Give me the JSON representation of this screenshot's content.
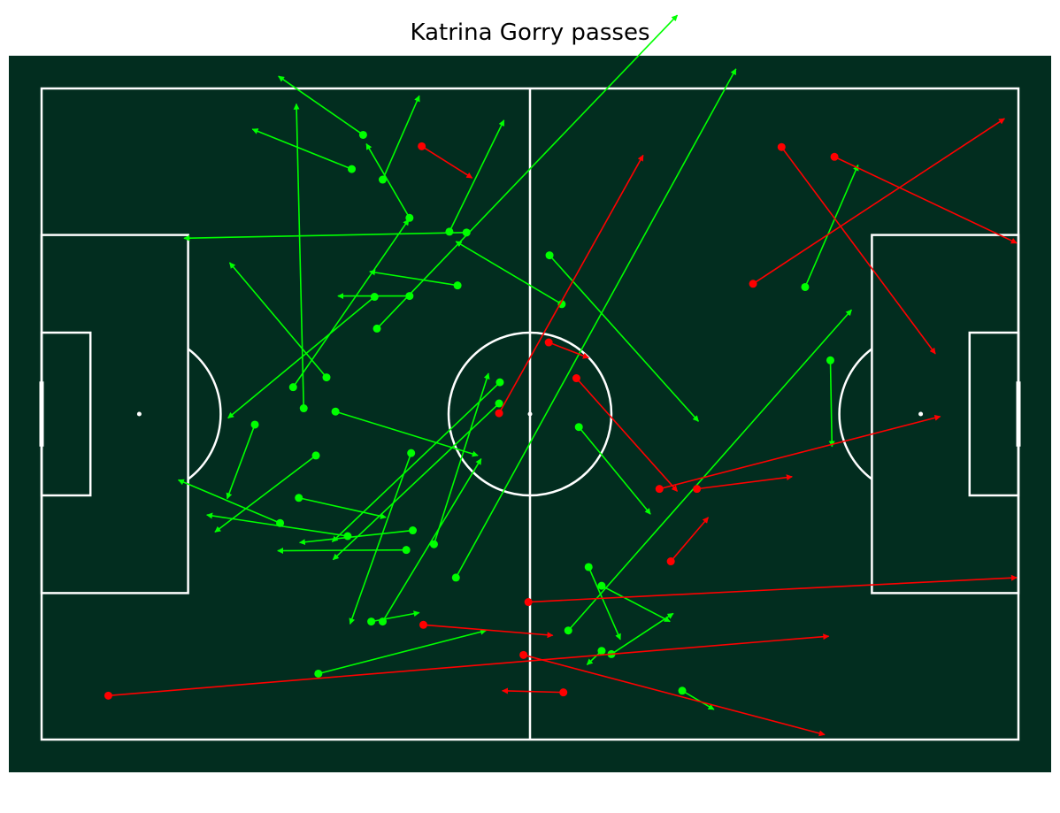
{
  "chart_data": {
    "type": "scatter",
    "title": "Katrina Gorry passes",
    "xlim": [
      0,
      120
    ],
    "ylim": [
      0,
      80
    ],
    "colors": {
      "pitch": "#022d1f",
      "lines": "#ffffff",
      "complete": "#00ff00",
      "incomplete": "#ff0000"
    },
    "series": [
      {
        "name": "complete",
        "passes": [
          {
            "x": 39.5,
            "y": 74.3,
            "end_x": 29.1,
            "end_y": 81.5
          },
          {
            "x": 41.9,
            "y": 68.8,
            "end_x": 46.4,
            "end_y": 79.1
          },
          {
            "x": 38.1,
            "y": 70.1,
            "end_x": 25.9,
            "end_y": 75.0
          },
          {
            "x": 45.2,
            "y": 64.1,
            "end_x": 39.9,
            "end_y": 73.2
          },
          {
            "x": 52.2,
            "y": 62.3,
            "end_x": 17.5,
            "end_y": 61.6
          },
          {
            "x": 50.1,
            "y": 62.4,
            "end_x": 56.8,
            "end_y": 76.1
          },
          {
            "x": 41.2,
            "y": 50.5,
            "end_x": 78.1,
            "end_y": 89.0
          },
          {
            "x": 30.9,
            "y": 43.3,
            "end_x": 45.1,
            "end_y": 63.9
          },
          {
            "x": 32.2,
            "y": 40.7,
            "end_x": 31.3,
            "end_y": 78.1
          },
          {
            "x": 35.0,
            "y": 44.5,
            "end_x": 23.1,
            "end_y": 58.6
          },
          {
            "x": 40.9,
            "y": 54.4,
            "end_x": 22.9,
            "end_y": 39.5
          },
          {
            "x": 45.2,
            "y": 54.5,
            "end_x": 36.4,
            "end_y": 54.5
          },
          {
            "x": 51.1,
            "y": 55.8,
            "end_x": 40.3,
            "end_y": 57.5
          },
          {
            "x": 62.4,
            "y": 59.5,
            "end_x": 80.7,
            "end_y": 39.1
          },
          {
            "x": 63.9,
            "y": 53.5,
            "end_x": 50.9,
            "end_y": 61.2
          },
          {
            "x": 36.1,
            "y": 40.3,
            "end_x": 53.6,
            "end_y": 34.9
          },
          {
            "x": 56.2,
            "y": 41.3,
            "end_x": 35.8,
            "end_y": 22.1
          },
          {
            "x": 26.2,
            "y": 38.7,
            "end_x": 22.8,
            "end_y": 29.6
          },
          {
            "x": 33.7,
            "y": 34.9,
            "end_x": 21.3,
            "end_y": 25.5
          },
          {
            "x": 31.6,
            "y": 29.7,
            "end_x": 42.3,
            "end_y": 27.3
          },
          {
            "x": 29.3,
            "y": 26.6,
            "end_x": 16.8,
            "end_y": 31.9
          },
          {
            "x": 37.6,
            "y": 25.0,
            "end_x": 20.3,
            "end_y": 27.6
          },
          {
            "x": 45.6,
            "y": 25.7,
            "end_x": 31.7,
            "end_y": 24.2
          },
          {
            "x": 44.8,
            "y": 23.3,
            "end_x": 29.0,
            "end_y": 23.2
          },
          {
            "x": 45.4,
            "y": 35.2,
            "end_x": 37.9,
            "end_y": 14.2
          },
          {
            "x": 40.5,
            "y": 14.5,
            "end_x": 46.4,
            "end_y": 15.6
          },
          {
            "x": 41.9,
            "y": 14.5,
            "end_x": 54.0,
            "end_y": 34.5
          },
          {
            "x": 48.2,
            "y": 24.0,
            "end_x": 54.9,
            "end_y": 45.0
          },
          {
            "x": 56.3,
            "y": 43.9,
            "end_x": 35.7,
            "end_y": 24.3
          },
          {
            "x": 50.9,
            "y": 19.9,
            "end_x": 85.3,
            "end_y": 82.4
          },
          {
            "x": 66.0,
            "y": 38.4,
            "end_x": 74.8,
            "end_y": 27.7
          },
          {
            "x": 67.2,
            "y": 21.2,
            "end_x": 71.1,
            "end_y": 12.3
          },
          {
            "x": 68.8,
            "y": 18.9,
            "end_x": 77.2,
            "end_y": 14.5
          },
          {
            "x": 64.7,
            "y": 13.4,
            "end_x": 99.5,
            "end_y": 52.8
          },
          {
            "x": 70.0,
            "y": 10.5,
            "end_x": 77.6,
            "end_y": 15.5
          },
          {
            "x": 68.8,
            "y": 10.9,
            "end_x": 67.0,
            "end_y": 9.2
          },
          {
            "x": 34.0,
            "y": 8.1,
            "end_x": 54.6,
            "end_y": 13.4
          },
          {
            "x": 78.7,
            "y": 6.0,
            "end_x": 82.6,
            "end_y": 3.7
          },
          {
            "x": 93.8,
            "y": 55.6,
            "end_x": 100.3,
            "end_y": 70.6
          },
          {
            "x": 96.9,
            "y": 46.6,
            "end_x": 97.1,
            "end_y": 36.0
          }
        ]
      },
      {
        "name": "incomplete",
        "passes": [
          {
            "x": 46.7,
            "y": 72.9,
            "end_x": 52.9,
            "end_y": 69.0
          },
          {
            "x": 56.2,
            "y": 40.1,
            "end_x": 73.9,
            "end_y": 71.8
          },
          {
            "x": 62.3,
            "y": 48.8,
            "end_x": 67.2,
            "end_y": 46.9
          },
          {
            "x": 65.7,
            "y": 44.4,
            "end_x": 78.1,
            "end_y": 30.5
          },
          {
            "x": 90.9,
            "y": 72.8,
            "end_x": 109.8,
            "end_y": 47.4
          },
          {
            "x": 97.4,
            "y": 71.6,
            "end_x": 119.8,
            "end_y": 61.0
          },
          {
            "x": 87.4,
            "y": 56.0,
            "end_x": 118.3,
            "end_y": 76.3
          },
          {
            "x": 75.9,
            "y": 30.8,
            "end_x": 110.4,
            "end_y": 39.7
          },
          {
            "x": 80.5,
            "y": 30.8,
            "end_x": 92.2,
            "end_y": 32.3
          },
          {
            "x": 77.3,
            "y": 21.9,
            "end_x": 81.9,
            "end_y": 27.3
          },
          {
            "x": 59.8,
            "y": 16.9,
            "end_x": 119.8,
            "end_y": 19.9
          },
          {
            "x": 46.9,
            "y": 14.1,
            "end_x": 62.8,
            "end_y": 12.8
          },
          {
            "x": 59.2,
            "y": 10.4,
            "end_x": 96.2,
            "end_y": 0.6
          },
          {
            "x": 8.2,
            "y": 5.4,
            "end_x": 96.7,
            "end_y": 12.7
          },
          {
            "x": 64.1,
            "y": 5.8,
            "end_x": 56.6,
            "end_y": 6.0
          }
        ]
      }
    ]
  }
}
